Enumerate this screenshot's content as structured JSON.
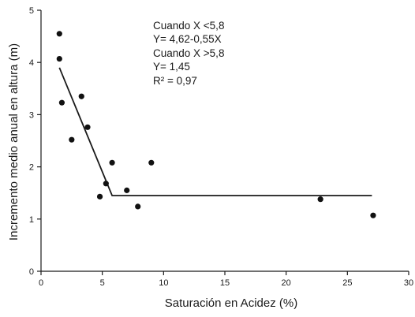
{
  "chart_data": {
    "type": "scatter",
    "xlabel": "Saturación en Acidez (%)",
    "ylabel": "Incremento medio anual en altura (m)",
    "xlim": [
      0,
      30
    ],
    "ylim": [
      0,
      5
    ],
    "xticks": [
      0,
      5,
      10,
      15,
      20,
      25,
      30
    ],
    "yticks": [
      0,
      1,
      2,
      3,
      4,
      5
    ],
    "grid": false,
    "points": [
      {
        "x": 1.5,
        "y": 4.55
      },
      {
        "x": 1.5,
        "y": 4.07
      },
      {
        "x": 1.7,
        "y": 3.23
      },
      {
        "x": 2.5,
        "y": 2.52
      },
      {
        "x": 3.3,
        "y": 3.35
      },
      {
        "x": 3.8,
        "y": 2.76
      },
      {
        "x": 4.8,
        "y": 1.43
      },
      {
        "x": 5.3,
        "y": 1.68
      },
      {
        "x": 5.8,
        "y": 2.08
      },
      {
        "x": 7.0,
        "y": 1.55
      },
      {
        "x": 7.9,
        "y": 1.24
      },
      {
        "x": 9.0,
        "y": 2.08
      },
      {
        "x": 22.8,
        "y": 1.38
      },
      {
        "x": 27.1,
        "y": 1.07
      }
    ],
    "fit_line": [
      {
        "x": 1.5,
        "y": 3.9
      },
      {
        "x": 5.8,
        "y": 1.45
      },
      {
        "x": 27.0,
        "y": 1.45
      }
    ],
    "annotation": [
      "Cuando X <5,8",
      "Y= 4,62-0,55X",
      "Cuando X >5,8",
      "Y= 1,45",
      "R² = 0,97"
    ]
  }
}
